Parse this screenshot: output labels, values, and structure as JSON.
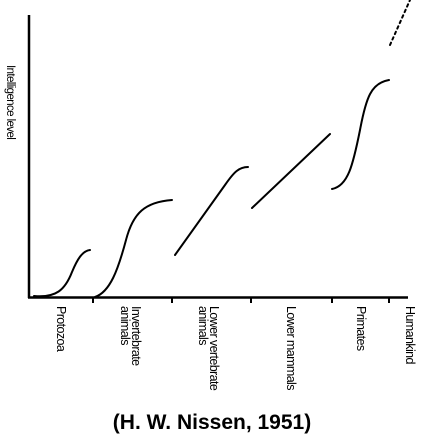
{
  "diagram": {
    "y_axis_label": "Intelligence level",
    "stages": [
      "Protozoa",
      "Invertebrate animals",
      "Lower vertebrate animals",
      "Lower mammals",
      "Primates",
      "Humankind"
    ],
    "caption": "(H. W. Nissen, 1951)"
  }
}
